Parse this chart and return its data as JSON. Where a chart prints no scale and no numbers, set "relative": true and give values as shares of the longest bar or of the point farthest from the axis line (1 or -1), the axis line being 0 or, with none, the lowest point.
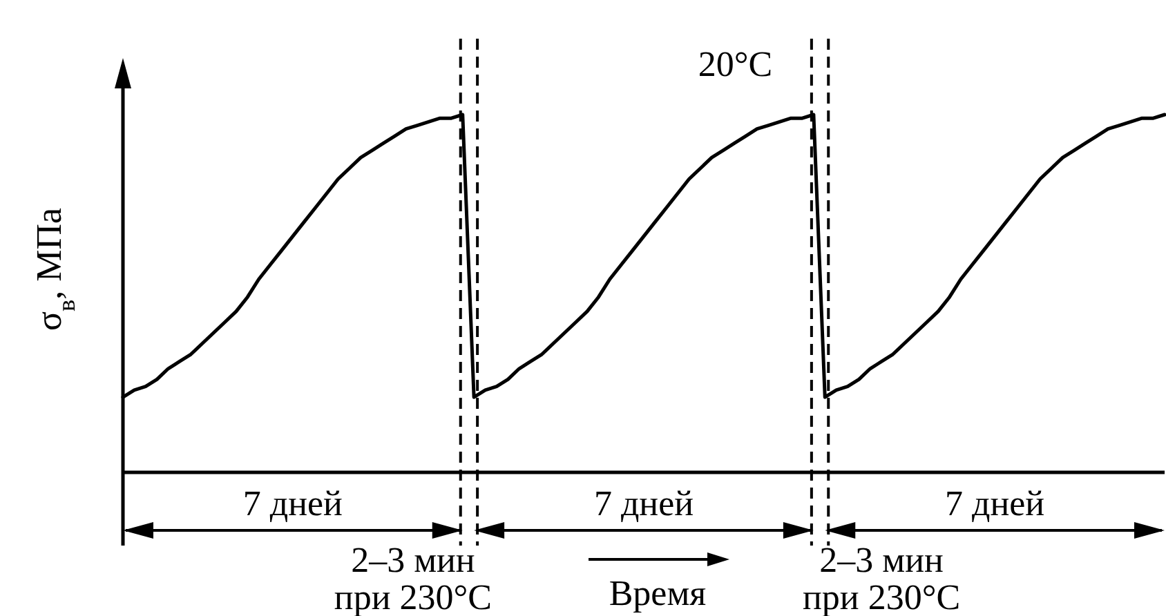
{
  "chart_data": {
    "type": "line",
    "relative": true,
    "xlabel": "Время",
    "ylabel": "σ$_{в}$, МПа",
    "categories": [
      null,
      null,
      null,
      null,
      null,
      null,
      null,
      null,
      null,
      null,
      null,
      null,
      null,
      null,
      null,
      null,
      null,
      null,
      null,
      null,
      null,
      null,
      null,
      null,
      null,
      null,
      null,
      null,
      null,
      null,
      null,
      null,
      null,
      null,
      null,
      null,
      null,
      null,
      null,
      null,
      null,
      null,
      null,
      null,
      null,
      null,
      null,
      null,
      null,
      null,
      null,
      null,
      null,
      null,
      null,
      null,
      null,
      null,
      null,
      null,
      null,
      null,
      null,
      null,
      null,
      null,
      null,
      null,
      null,
      null,
      null,
      null,
      null,
      null,
      null,
      null,
      null,
      null,
      null,
      null,
      null,
      null,
      null,
      null,
      null,
      null,
      null,
      null,
      null,
      null,
      null,
      null,
      null
    ],
    "series": [
      {
        "color": "#000000",
        "values": [
          0.21,
          0.23,
          0.24,
          0.26,
          0.29,
          0.31,
          0.33,
          0.36,
          0.39,
          0.42,
          0.45,
          0.49,
          0.54,
          0.58,
          0.62,
          0.66,
          0.7,
          0.74,
          0.78,
          0.82,
          0.85,
          0.88,
          0.9,
          0.92,
          0.94,
          0.96,
          0.97,
          0.98,
          0.99,
          0.99,
          1,
          0.21,
          0.23,
          0.24,
          0.26,
          0.29,
          0.31,
          0.33,
          0.36,
          0.39,
          0.42,
          0.45,
          0.49,
          0.54,
          0.58,
          0.62,
          0.66,
          0.7,
          0.74,
          0.78,
          0.82,
          0.85,
          0.88,
          0.9,
          0.92,
          0.94,
          0.96,
          0.97,
          0.98,
          0.99,
          0.99,
          1,
          0.21,
          0.23,
          0.24,
          0.26,
          0.29,
          0.31,
          0.33,
          0.36,
          0.39,
          0.42,
          0.45,
          0.49,
          0.54,
          0.58,
          0.62,
          0.66,
          0.7,
          0.74,
          0.78,
          0.82,
          0.85,
          0.88,
          0.9,
          0.92,
          0.94,
          0.96,
          0.97,
          0.98,
          0.99,
          0.99,
          1
        ]
      }
    ],
    "annotations": [
      "20°C",
      "7 дней",
      "7 дней",
      "7 дней",
      "2–3 мин\nпри 230°C",
      "2–3 мин\nпри 230°C"
    ]
  }
}
